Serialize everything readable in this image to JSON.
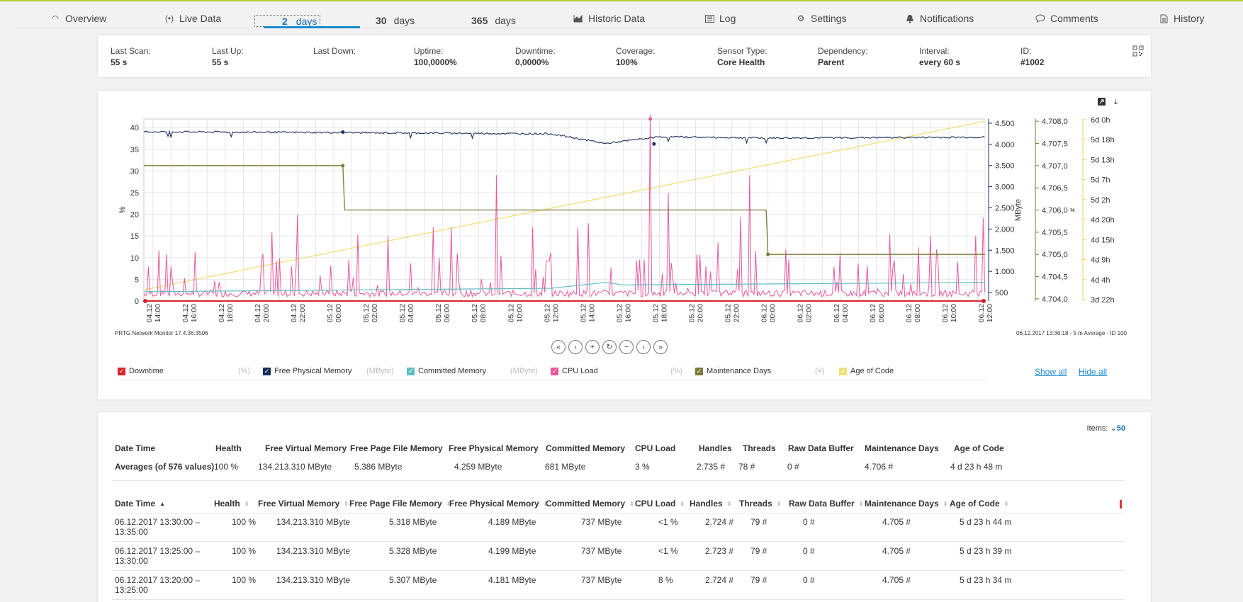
{
  "tabs": [
    {
      "label": "Overview",
      "icon": "gauge-icon"
    },
    {
      "label": "Live Data",
      "icon": "broadcast-icon"
    },
    {
      "num": "2",
      "label": "days",
      "active": true
    },
    {
      "num": "30",
      "label": "days"
    },
    {
      "num": "365",
      "label": "days"
    },
    {
      "label": "Historic Data",
      "icon": "area-chart-icon"
    },
    {
      "label": "Log",
      "icon": "list-icon"
    },
    {
      "label": "Settings",
      "icon": "gear-icon"
    },
    {
      "label": "Notifications",
      "icon": "bell-icon"
    },
    {
      "label": "Comments",
      "icon": "comment-icon"
    },
    {
      "label": "History",
      "icon": "document-icon"
    }
  ],
  "info": [
    {
      "label": "Last Scan:",
      "value": "55 s"
    },
    {
      "label": "Last Up:",
      "value": "55 s"
    },
    {
      "label": "Last Down:",
      "value": ""
    },
    {
      "label": "Uptime:",
      "value": "100,0000%"
    },
    {
      "label": "Downtime:",
      "value": "0,0000%"
    },
    {
      "label": "Coverage:",
      "value": "100%"
    },
    {
      "label": "Sensor Type:",
      "value": "Core Health"
    },
    {
      "label": "Dependency:",
      "value": "Parent"
    },
    {
      "label": "Interval:",
      "value": "every 60 s"
    },
    {
      "label": "ID:",
      "value": "#1002"
    }
  ],
  "graph": {
    "footer_left": "PRTG Network Monitor 17.4.36.3506",
    "footer_right": "06.12.2017 13:36:18 - 5 m Average - ID 100",
    "nav": [
      "«",
      "‹",
      "+",
      "↻",
      "−",
      "›",
      "»"
    ],
    "show_all": "Show all",
    "hide_all": "Hide all",
    "legend": [
      {
        "label": "Downtime",
        "unit": "(%)",
        "color": "#d9232e"
      },
      {
        "label": "Free Physical Memory",
        "unit": "(MByte)",
        "color": "#1c2c5c"
      },
      {
        "label": "Committed Memory",
        "unit": "(MByte)",
        "color": "#5fbcc4"
      },
      {
        "label": "CPU Load",
        "unit": "(%)",
        "color": "#e8579e"
      },
      {
        "label": "Maintenance Days",
        "unit": "(#)",
        "color": "#7a7a3a"
      },
      {
        "label": "Age of Code",
        "unit": "",
        "color": "#f0df7a"
      }
    ]
  },
  "chart_data": {
    "type": "line",
    "x_tick_labels": [
      "04.12 14:00",
      "04.12 16:00",
      "04.12 18:00",
      "04.12 20:00",
      "04.12 22:00",
      "05.12 00:00",
      "05.12 02:00",
      "05.12 04:00",
      "05.12 06:00",
      "05.12 08:00",
      "05.12 10:00",
      "05.12 12:00",
      "05.12 14:00",
      "05.12 16:00",
      "05.12 18:00",
      "05.12 20:00",
      "05.12 22:00",
      "06.12 00:00",
      "06.12 02:00",
      "06.12 04:00",
      "06.12 06:00",
      "06.12 08:00",
      "06.12 10:00",
      "06.12 12:00"
    ],
    "y_left": {
      "label": "%",
      "ticks": [
        "0",
        "5",
        "10",
        "15",
        "20",
        "25",
        "30",
        "35",
        "40"
      ],
      "range": [
        0,
        42
      ]
    },
    "y_right1": {
      "label": "MByte",
      "ticks": [
        "500",
        "1.000",
        "1.500",
        "2.000",
        "2.500",
        "3.000",
        "3.500",
        "4.000",
        "4.500"
      ],
      "range": [
        300,
        4600
      ]
    },
    "y_right2": {
      "label": "#",
      "ticks": [
        "4.704,0",
        "4.704,5",
        "4.705,0",
        "4.705,5",
        "4.706,0",
        "4.706,5",
        "4.707,0",
        "4.707,5",
        "4.708,0"
      ],
      "range": [
        4704,
        4708
      ]
    },
    "y_right3": {
      "ticks": [
        "3d 22h",
        "4d 4h",
        "4d 9h",
        "4d 15h",
        "4d 20h",
        "5d 2h",
        "5d 7h",
        "5d 13h",
        "5d 18h",
        "6d 0h"
      ]
    },
    "x_range_hours": [
      13.5,
      60.0
    ],
    "series": [
      {
        "name": "Downtime",
        "unit": "%",
        "points": [
          [
            13.5,
            0
          ],
          [
            60.0,
            0
          ]
        ]
      },
      {
        "name": "Free Physical Memory",
        "unit": "MByte",
        "points": [
          [
            13.5,
            4.3
          ],
          [
            24,
            4.28
          ],
          [
            36,
            4.25
          ],
          [
            38,
            4.1
          ],
          [
            39,
            4.02
          ],
          [
            42,
            4.18
          ],
          [
            48,
            4.15
          ],
          [
            54,
            4.16
          ],
          [
            60,
            4.17
          ]
        ],
        "points_unit": "thousand MByte"
      },
      {
        "name": "Committed Memory",
        "unit": "MByte",
        "points": [
          [
            13.5,
            520
          ],
          [
            36,
            600
          ],
          [
            39,
            737
          ],
          [
            40,
            680
          ],
          [
            60,
            737
          ]
        ]
      },
      {
        "name": "CPU Load",
        "unit": "%",
        "peaks": [
          [
            15,
            8
          ],
          [
            22,
            20
          ],
          [
            27,
            15
          ],
          [
            29.5,
            17
          ],
          [
            30.5,
            17
          ],
          [
            33,
            29
          ],
          [
            35,
            17
          ],
          [
            37.5,
            17
          ],
          [
            41.5,
            44
          ],
          [
            42.5,
            25
          ],
          [
            47,
            29
          ],
          [
            52,
            11
          ],
          [
            57,
            15
          ],
          [
            59.5,
            15
          ]
        ],
        "baseline": 1
      }
    ],
    "secondary_series": [
      {
        "name": "Maintenance Days",
        "unit": "#",
        "points": [
          [
            13.5,
            4707.0
          ],
          [
            24.5,
            4707.0
          ],
          [
            24.6,
            4706.0
          ],
          [
            47.9,
            4706.0
          ],
          [
            48.0,
            4705.0
          ],
          [
            60.0,
            4705.0
          ]
        ]
      },
      {
        "name": "Age of Code",
        "points": [
          [
            13.5,
            4704.2
          ],
          [
            60.0,
            4708.0
          ]
        ],
        "points_unit": "#"
      }
    ]
  },
  "table": {
    "items_label": "Items:",
    "items_value": "50",
    "columns": [
      "Date Time",
      "Health",
      "Free Virtual Memory",
      "Free Page File Memory",
      "Free Physical Memory",
      "Committed Memory",
      "CPU Load",
      "Handles",
      "Threads",
      "Raw Data Buffer",
      "Maintenance Days",
      "Age of Code"
    ],
    "averages": [
      "Averages (of 576 values)",
      "100 %",
      "134.213.310 MByte",
      "5.386 MByte",
      "4.259 MByte",
      "681 MByte",
      "3 %",
      "2.735 #",
      "78 #",
      "0 #",
      "4.706 #",
      "4 d 23 h 48 m"
    ],
    "rows": [
      [
        "06.12.2017 13:30:00 –\n13:35:00",
        "100 %",
        "134.213.310 MByte",
        "5.318 MByte",
        "4.189 MByte",
        "737 MByte",
        "<1 %",
        "2.724 #",
        "79 #",
        "0 #",
        "4.705 #",
        "5 d 23 h 44 m"
      ],
      [
        "06.12.2017 13:25:00 –\n13:30:00",
        "100 %",
        "134.213.310 MByte",
        "5.328 MByte",
        "4.199 MByte",
        "737 MByte",
        "<1 %",
        "2.723 #",
        "79 #",
        "0 #",
        "4.705 #",
        "5 d 23 h 39 m"
      ],
      [
        "06.12.2017 13:20:00 –\n13:25:00",
        "100 %",
        "134.213.310 MByte",
        "5.307 MByte",
        "4.181 MByte",
        "737 MByte",
        "8 %",
        "2.724 #",
        "79 #",
        "0 #",
        "4.705 #",
        "5 d 23 h 34 m"
      ]
    ]
  }
}
